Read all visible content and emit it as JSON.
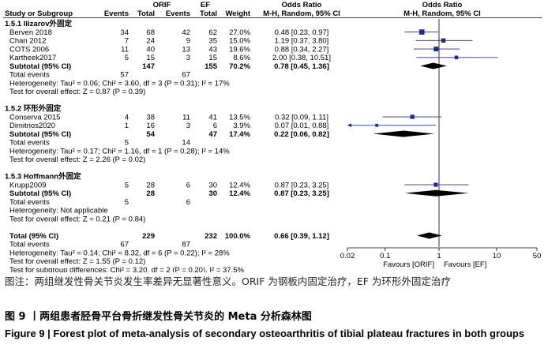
{
  "header": {
    "group1": "ORIF",
    "group2": "EF",
    "study_col": "Study or Subgroup",
    "events": "Events",
    "total": "Total",
    "weight": "Weight",
    "or_title": "Odds Ratio",
    "or_sub": "M-H, Random, 95% CI"
  },
  "rows": [
    {
      "kind": "group",
      "label": "1.5.1 Ilizarov外固定"
    },
    {
      "kind": "study",
      "name": "Berven 2018",
      "e1": "34",
      "t1": "68",
      "e2": "42",
      "t2": "62",
      "w": "27.0%",
      "ci": "0.48 [0.23, 0.97]"
    },
    {
      "kind": "study",
      "name": "Chan 2012",
      "e1": "7",
      "t1": "24",
      "e2": "9",
      "t2": "35",
      "w": "15.0%",
      "ci": "1.19 [0.37, 3.80]"
    },
    {
      "kind": "study",
      "name": "COTS 2006",
      "e1": "11",
      "t1": "40",
      "e2": "13",
      "t2": "43",
      "w": "19.6%",
      "ci": "0.88 [0.34, 2.27]"
    },
    {
      "kind": "study",
      "name": "Kartheek2017",
      "e1": "5",
      "t1": "15",
      "e2": "3",
      "t2": "15",
      "w": "8.6%",
      "ci": "2.00 [0.38, 10.51]"
    },
    {
      "kind": "subtotal",
      "name": "Subtotal (95% CI)",
      "t1": "147",
      "t2": "155",
      "w": "70.2%",
      "ci": "0.78 [0.45, 1.36]"
    },
    {
      "kind": "events",
      "name": "Total events",
      "e1": "57",
      "e2": "67"
    },
    {
      "kind": "text",
      "text": "Heterogeneity: Tau² = 0.06; Chi² = 3.60, df = 3 (P = 0.31); I² = 17%"
    },
    {
      "kind": "text",
      "text": "Test for overall effect: Z = 0.87 (P = 0.39)"
    },
    {
      "kind": "blank"
    },
    {
      "kind": "group",
      "label": "1.5.2 环形外固定"
    },
    {
      "kind": "study",
      "name": "Conserva 2015",
      "e1": "4",
      "t1": "38",
      "e2": "11",
      "t2": "41",
      "w": "13.5%",
      "ci": "0.32 [0.09, 1.11]"
    },
    {
      "kind": "study",
      "name": "Dimitrios2020",
      "e1": "1",
      "t1": "16",
      "e2": "3",
      "t2": "6",
      "w": "3.9%",
      "ci": "0.07 [0.01, 0.88]"
    },
    {
      "kind": "subtotal",
      "name": "Subtotal (95% CI)",
      "t1": "54",
      "t2": "47",
      "w": "17.4%",
      "ci": "0.22 [0.06, 0.82]"
    },
    {
      "kind": "events",
      "name": "Total events",
      "e1": "5",
      "e2": "14"
    },
    {
      "kind": "text",
      "text": "Heterogeneity: Tau² = 0.17; Chi² = 1.16, df = 1 (P = 0.28); I² = 14%"
    },
    {
      "kind": "text",
      "text": "Test for overall effect: Z = 2.26 (P = 0.02)"
    },
    {
      "kind": "blank"
    },
    {
      "kind": "group",
      "label": "1.5.3 Hoffmann外固定"
    },
    {
      "kind": "study",
      "name": "Krupp2009",
      "e1": "5",
      "t1": "28",
      "e2": "6",
      "t2": "30",
      "w": "12.4%",
      "ci": "0.87 [0.23, 3.25]"
    },
    {
      "kind": "subtotal",
      "name": "Subtotal (95% CI)",
      "t1": "28",
      "t2": "30",
      "w": "12.4%",
      "ci": "0.87 [0.23, 3.25]"
    },
    {
      "kind": "events",
      "name": "Total events",
      "e1": "5",
      "e2": "6"
    },
    {
      "kind": "text",
      "text": "Heterogeneity: Not applicable"
    },
    {
      "kind": "text",
      "text": "Test for overall effect: Z = 0.21 (P = 0.84)"
    },
    {
      "kind": "blank"
    },
    {
      "kind": "subtotal",
      "name": "Total (95% CI)",
      "t1": "229",
      "t2": "232",
      "w": "100.0%",
      "ci": "0.66 [0.39, 1.12]"
    },
    {
      "kind": "events",
      "name": "Total events",
      "e1": "67",
      "e2": "87"
    },
    {
      "kind": "text",
      "text": "Heterogeneity: Tau² = 0.14; Chi² = 8.32, df = 6 (P = 0.22); I² = 28%"
    },
    {
      "kind": "text",
      "text": "Test for overall effect: Z = 1.55 (P = 0.12)"
    },
    {
      "kind": "text",
      "text": "Test for subgroup differences: Chi² = 3.20, df = 2 (P = 0.20), I² = 37.5%"
    }
  ],
  "chart_data": {
    "type": "forest",
    "scale": "log",
    "xlim": [
      0.02,
      50
    ],
    "reference_line": 1,
    "ticks": [
      {
        "value": 0.02,
        "label": "0.02"
      },
      {
        "value": 0.1,
        "label": "0.1"
      },
      {
        "value": 1,
        "label": "1"
      },
      {
        "value": 10,
        "label": "10"
      },
      {
        "value": 50,
        "label": "50"
      }
    ],
    "favours_left": "Favours [ORIF]",
    "favours_right": "Favours [EF]",
    "study_color": "#1f2d8a",
    "diamond_color": "#000000",
    "studies": [
      {
        "name": "Berven 2018",
        "or": 0.48,
        "lo": 0.23,
        "hi": 0.97,
        "weight": 27.0
      },
      {
        "name": "Chan 2012",
        "or": 1.19,
        "lo": 0.37,
        "hi": 3.8,
        "weight": 15.0
      },
      {
        "name": "COTS 2006",
        "or": 0.88,
        "lo": 0.34,
        "hi": 2.27,
        "weight": 19.6
      },
      {
        "name": "Kartheek2017",
        "or": 2.0,
        "lo": 0.38,
        "hi": 10.51,
        "weight": 8.6
      },
      {
        "name": "Conserva 2015",
        "or": 0.32,
        "lo": 0.09,
        "hi": 1.11,
        "weight": 13.5
      },
      {
        "name": "Dimitrios2020",
        "or": 0.07,
        "lo": 0.01,
        "hi": 0.88,
        "weight": 3.9
      },
      {
        "name": "Krupp2009",
        "or": 0.87,
        "lo": 0.23,
        "hi": 3.25,
        "weight": 12.4
      }
    ],
    "pooled": [
      {
        "name": "Subtotal 1.5.1",
        "or": 0.78,
        "lo": 0.45,
        "hi": 1.36
      },
      {
        "name": "Subtotal 1.5.2",
        "or": 0.22,
        "lo": 0.06,
        "hi": 0.82
      },
      {
        "name": "Subtotal 1.5.3",
        "or": 0.87,
        "lo": 0.23,
        "hi": 3.25
      },
      {
        "name": "Total",
        "or": 0.66,
        "lo": 0.39,
        "hi": 1.12
      }
    ]
  },
  "caption": {
    "note": "图注：两组继发性骨关节炎发生率差异无显著性意义。ORIF 为钢板内固定治疗，EF 为环形外固定治疗",
    "title_zh": "图 9 丨两组患者胫骨平台骨折继发性骨关节炎的 Meta 分析森林图",
    "title_en": "Figure 9 | Forest plot of meta-analysis of secondary osteoarthritis of tibial plateau fractures in both groups"
  }
}
